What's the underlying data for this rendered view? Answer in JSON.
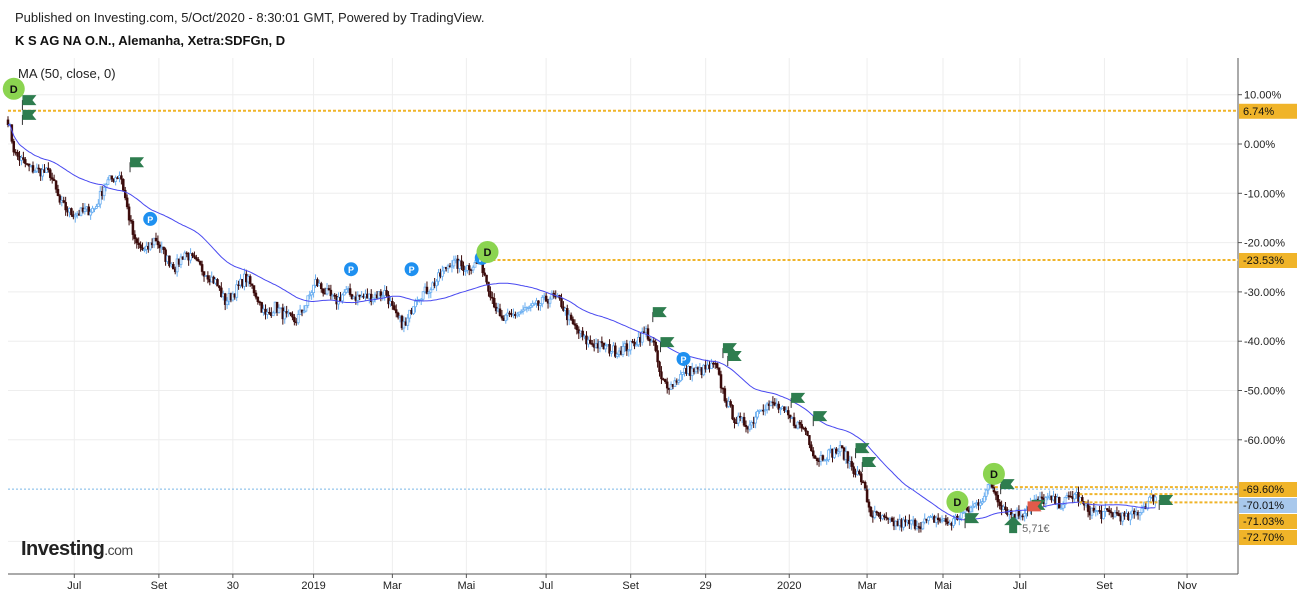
{
  "header": {
    "published": "Published on Investing.com, 5/Oct/2020 - 8:30:01 GMT, Powered by TradingView.",
    "symbol": "K S AG NA O.N., Alemanha, Xetra:SDFGn, D"
  },
  "indicator": "MA (50, close, 0)",
  "logo": {
    "main": "Investing",
    "suffix": ".com"
  },
  "colors": {
    "down": "#3a0a0a",
    "up": "#6aaef0",
    "ma": "#4a4af0",
    "orange": "#f0b429",
    "blue_label": "#a8c8ec",
    "d_marker": "#8bd450",
    "p_marker": "#1e90f0",
    "flag": "#2e7d4f"
  },
  "chart_data": {
    "type": "candlestick",
    "title": "K S AG NA O.N., Alemanha, Xetra:SDFGn, D",
    "x_unit": "weeks since start",
    "xlim": [
      0,
      128
    ],
    "ylim": [
      -78,
      14
    ],
    "y_unit": "%",
    "grid": true,
    "y_ticks": [
      10,
      0,
      -10,
      -20,
      -30,
      -40,
      -50,
      -60
    ],
    "y_tick_labels": [
      "10.00%",
      "0.00%",
      "-10.00%",
      "-20.00%",
      "-30.00%",
      "-40.00%",
      "-50.00%",
      "-60.00%"
    ],
    "x_ticks": [
      {
        "x": 6.9,
        "label": "Jul"
      },
      {
        "x": 15.7,
        "label": "Set"
      },
      {
        "x": 23.4,
        "label": "30"
      },
      {
        "x": 31.8,
        "label": "2019"
      },
      {
        "x": 40,
        "label": "Mar"
      },
      {
        "x": 47.7,
        "label": "Mai"
      },
      {
        "x": 56,
        "label": "Jul"
      },
      {
        "x": 64.8,
        "label": "Set"
      },
      {
        "x": 72.6,
        "label": "29"
      },
      {
        "x": 81.3,
        "label": "2020"
      },
      {
        "x": 89.4,
        "label": "Mar"
      },
      {
        "x": 97.3,
        "label": "Mai"
      },
      {
        "x": 105.3,
        "label": "Jul"
      },
      {
        "x": 114.1,
        "label": "Set"
      },
      {
        "x": 122.7,
        "label": "Nov"
      }
    ],
    "close_series": [
      [
        0,
        5
      ],
      [
        0.7,
        -2
      ],
      [
        2.3,
        -5
      ],
      [
        4.4,
        -6
      ],
      [
        5.4,
        -12
      ],
      [
        6.5,
        -14
      ],
      [
        7.5,
        -14
      ],
      [
        9.1,
        -13
      ],
      [
        10.1,
        -8
      ],
      [
        11.7,
        -6
      ],
      [
        12.5,
        -14
      ],
      [
        13.2,
        -20
      ],
      [
        14.3,
        -22
      ],
      [
        15.3,
        -19
      ],
      [
        16.4,
        -23
      ],
      [
        17.4,
        -25
      ],
      [
        18.4,
        -22
      ],
      [
        20,
        -25
      ],
      [
        21.6,
        -28
      ],
      [
        22.6,
        -32
      ],
      [
        23.6,
        -30
      ],
      [
        24.7,
        -27
      ],
      [
        25.7,
        -30
      ],
      [
        26.8,
        -35
      ],
      [
        27.8,
        -33
      ],
      [
        28.9,
        -35
      ],
      [
        29.9,
        -36
      ],
      [
        30.9,
        -33
      ],
      [
        32,
        -28
      ],
      [
        33,
        -30
      ],
      [
        34.1,
        -32
      ],
      [
        35.1,
        -30
      ],
      [
        36.1,
        -31
      ],
      [
        37.7,
        -31
      ],
      [
        39.3,
        -30
      ],
      [
        40.3,
        -35
      ],
      [
        41.4,
        -37
      ],
      [
        42.4,
        -31
      ],
      [
        43.4,
        -30
      ],
      [
        44.5,
        -28
      ],
      [
        46,
        -24
      ],
      [
        47.6,
        -25
      ],
      [
        49.2,
        -24
      ],
      [
        50.2,
        -30
      ],
      [
        51.3,
        -36
      ],
      [
        52.3,
        -35
      ],
      [
        53.3,
        -34
      ],
      [
        54.9,
        -33
      ],
      [
        56.5,
        -31
      ],
      [
        57.5,
        -32
      ],
      [
        58.5,
        -36
      ],
      [
        60.1,
        -40
      ],
      [
        61.7,
        -41
      ],
      [
        63.2,
        -42
      ],
      [
        64.8,
        -41
      ],
      [
        66.4,
        -38
      ],
      [
        67.4,
        -42
      ],
      [
        67.9,
        -48
      ],
      [
        69,
        -49
      ],
      [
        70.5,
        -46
      ],
      [
        72.1,
        -46
      ],
      [
        73.6,
        -45
      ],
      [
        74.7,
        -52
      ],
      [
        75.7,
        -56
      ],
      [
        77.3,
        -57
      ],
      [
        78.3,
        -53
      ],
      [
        79.9,
        -53
      ],
      [
        81.5,
        -56
      ],
      [
        83,
        -58
      ],
      [
        84.1,
        -64
      ],
      [
        85.1,
        -63
      ],
      [
        86.7,
        -62
      ],
      [
        87.7,
        -65
      ],
      [
        88.8,
        -68
      ],
      [
        89.8,
        -75
      ],
      [
        90.8,
        -76
      ],
      [
        91.9,
        -77
      ],
      [
        92.9,
        -77
      ],
      [
        95,
        -77
      ],
      [
        96.6,
        -76
      ],
      [
        98.1,
        -77
      ],
      [
        99.2,
        -75
      ],
      [
        100.2,
        -74
      ],
      [
        101.3,
        -72
      ],
      [
        102.3,
        -69
      ],
      [
        103.3,
        -73
      ],
      [
        104.4,
        -75
      ],
      [
        105.4,
        -75
      ],
      [
        106.5,
        -73
      ],
      [
        108,
        -72
      ],
      [
        109.6,
        -73
      ],
      [
        111.1,
        -71
      ],
      [
        112.2,
        -74
      ],
      [
        113.8,
        -75
      ],
      [
        115.3,
        -75
      ],
      [
        116.4,
        -76
      ],
      [
        117.4,
        -75
      ],
      [
        118.4,
        -73
      ],
      [
        119.5,
        -71
      ]
    ],
    "ma_period_days": 50,
    "price_lines": [
      {
        "value": 6.74,
        "label": "6.74%",
        "from_x": 0,
        "style": "orange"
      },
      {
        "value": -23.53,
        "label": "-23.53%",
        "from_x": 49.9,
        "style": "orange"
      },
      {
        "value": -69.6,
        "label": "-69.60%",
        "from_x": 102.7,
        "style": "orange"
      },
      {
        "value": -70.01,
        "label": "-70.01%",
        "from_x": 0,
        "style": "blue"
      },
      {
        "value": -71.03,
        "label": "-71.03%",
        "from_x": 111.5,
        "style": "orange"
      },
      {
        "value": -72.7,
        "label": "-72.70%",
        "from_x": 111.5,
        "style": "orange"
      }
    ],
    "dividend_markers": [
      [
        0.6,
        11.2
      ],
      [
        49.9,
        -21.9
      ],
      [
        98.8,
        -72.6
      ],
      [
        102.6,
        -66.9
      ]
    ],
    "dividend_label": "D",
    "p_markers": [
      [
        14.8,
        -15.2
      ],
      [
        35.7,
        -25.4
      ],
      [
        42,
        -25.4
      ],
      [
        49.3,
        -23.1
      ],
      [
        70.3,
        -43.6
      ]
    ],
    "p_label": "P",
    "flags": [
      [
        1.5,
        8.9
      ],
      [
        1.5,
        5.9
      ],
      [
        12.7,
        -3.7
      ],
      [
        67.1,
        -34.1
      ],
      [
        67.9,
        -40.2
      ],
      [
        74.4,
        -41.4
      ],
      [
        74.9,
        -43
      ],
      [
        81.5,
        -51.5
      ],
      [
        83.8,
        -55.2
      ],
      [
        88.2,
        -61.7
      ],
      [
        88.9,
        -64.5
      ],
      [
        99.6,
        -75.9
      ],
      [
        103.3,
        -69
      ],
      [
        106.5,
        -73.2
      ],
      [
        119.8,
        -72.2
      ]
    ],
    "red_flag": [
      106.1,
      -73.5
    ],
    "trade_arrow": {
      "x": 104.6,
      "value": -77.5,
      "label": "5,71€"
    }
  }
}
